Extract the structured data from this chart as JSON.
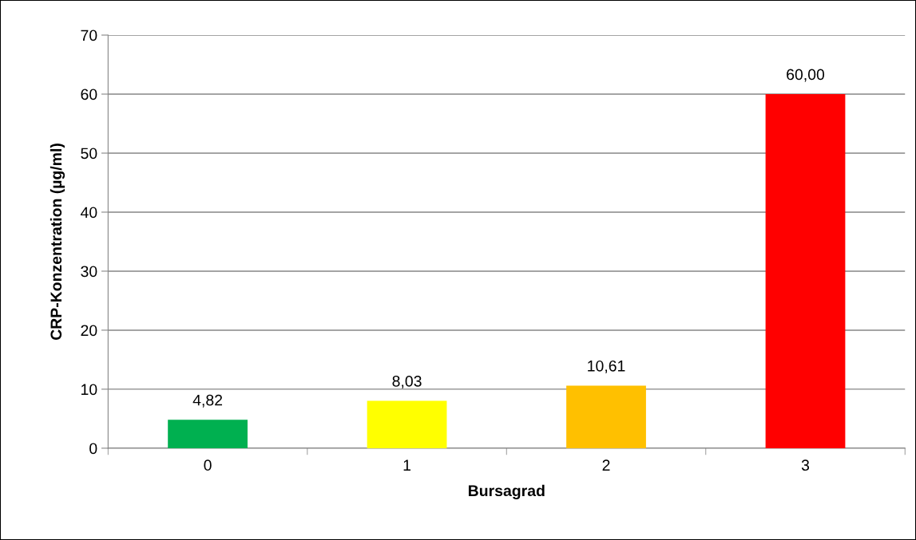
{
  "chart_data": {
    "type": "bar",
    "xlabel": "Bursagrad",
    "ylabel": "CRP-Konzentration (µg/ml)",
    "categories": [
      "0",
      "1",
      "2",
      "3"
    ],
    "values": [
      4.82,
      8.03,
      10.61,
      60.0
    ],
    "colors": [
      "#00b050",
      "#ffff00",
      "#ffc000",
      "#ff0000"
    ],
    "value_labels": [
      "4,82",
      "8,03",
      "10,61",
      "60,00"
    ],
    "ylim": [
      0,
      70
    ],
    "yticks": [
      0,
      10,
      20,
      30,
      40,
      50,
      60,
      70
    ],
    "grid": "y",
    "legend": false
  }
}
